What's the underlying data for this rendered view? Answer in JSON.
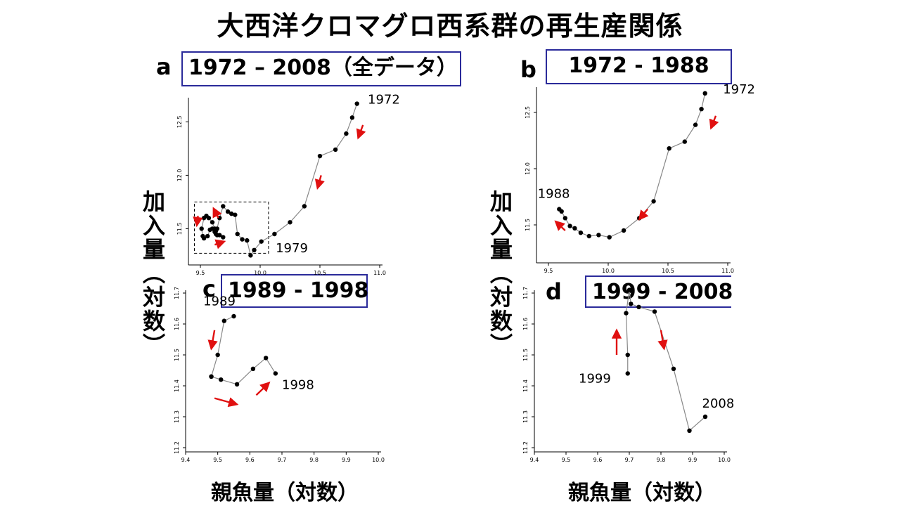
{
  "title": "大西洋クロマグロ西系群の再生産関係",
  "y_axis_label": "加入量（対数）",
  "x_axis_label": "親魚量（対数）",
  "colors": {
    "arrow": "#e01010",
    "line": "#888888",
    "point": "#000000",
    "box_border": "#2a2a9a"
  },
  "chart_data": [
    {
      "id": "a",
      "type": "line",
      "panel_label": "a",
      "range_label": "1972 – 2008（全データ）",
      "xlim": [
        9.4,
        11.0
      ],
      "ylim": [
        11.2,
        12.7
      ],
      "xticks": [
        "9.5",
        "10.0",
        "10.5",
        "11.0"
      ],
      "yticks": [
        "11.5",
        "12.0",
        "12.5"
      ],
      "annotations": [
        {
          "text": "1972",
          "x": 10.9,
          "y": 12.67
        },
        {
          "text": "1979",
          "x": 10.13,
          "y": 11.28
        }
      ],
      "arrows": [
        {
          "x1": 10.86,
          "y1": 12.47,
          "x2": 10.82,
          "y2": 12.35
        },
        {
          "x1": 10.51,
          "y1": 12.0,
          "x2": 10.48,
          "y2": 11.88
        },
        {
          "x1": 9.48,
          "y1": 11.62,
          "x2": 9.47,
          "y2": 11.53
        },
        {
          "x1": 9.65,
          "y1": 11.6,
          "x2": 9.61,
          "y2": 11.69
        },
        {
          "x1": 9.62,
          "y1": 11.35,
          "x2": 9.7,
          "y2": 11.38
        }
      ],
      "dashed_box": [
        9.45,
        10.07,
        11.27,
        11.75
      ],
      "x": [
        10.81,
        10.77,
        10.72,
        10.63,
        10.5,
        10.37,
        10.25,
        10.12,
        10.01,
        9.95,
        9.92,
        9.89,
        9.85,
        9.81,
        9.79,
        9.76,
        9.73,
        9.69,
        9.66,
        9.64,
        9.63,
        9.62,
        9.6,
        9.58,
        9.56,
        9.53,
        9.52,
        9.51,
        9.53,
        9.55,
        9.57,
        9.6,
        9.62,
        9.63,
        9.64,
        9.66,
        9.69
      ],
      "y": [
        12.67,
        12.54,
        12.39,
        12.24,
        12.18,
        11.71,
        11.56,
        11.45,
        11.38,
        11.3,
        11.25,
        11.39,
        11.4,
        11.45,
        11.63,
        11.64,
        11.66,
        11.71,
        11.6,
        11.5,
        11.45,
        11.47,
        11.5,
        11.49,
        11.43,
        11.41,
        11.43,
        11.5,
        11.6,
        11.62,
        11.6,
        11.56,
        11.5,
        11.48,
        11.44,
        11.44,
        11.42
      ]
    },
    {
      "id": "b",
      "type": "line",
      "panel_label": "b",
      "range_label": "1972 - 1988",
      "xlim": [
        9.4,
        11.0
      ],
      "ylim": [
        11.2,
        12.7
      ],
      "xticks": [
        "9.5",
        "10.0",
        "10.5",
        "11.0"
      ],
      "yticks": [
        "11.5",
        "12.0",
        "12.5"
      ],
      "annotations": [
        {
          "text": "1972",
          "x": 10.96,
          "y": 12.67
        },
        {
          "text": "1988",
          "x": 9.41,
          "y": 11.74
        }
      ],
      "arrows": [
        {
          "x1": 10.9,
          "y1": 12.47,
          "x2": 10.86,
          "y2": 12.36
        },
        {
          "x1": 10.33,
          "y1": 11.64,
          "x2": 10.26,
          "y2": 11.55
        },
        {
          "x1": 9.64,
          "y1": 11.45,
          "x2": 9.56,
          "y2": 11.53
        }
      ],
      "x": [
        10.81,
        10.78,
        10.73,
        10.64,
        10.51,
        10.38,
        10.26,
        10.13,
        10.01,
        9.92,
        9.84,
        9.77,
        9.72,
        9.68,
        9.64,
        9.61,
        9.59
      ],
      "y": [
        12.67,
        12.53,
        12.39,
        12.24,
        12.18,
        11.71,
        11.56,
        11.45,
        11.39,
        11.41,
        11.4,
        11.43,
        11.47,
        11.49,
        11.56,
        11.62,
        11.64
      ]
    },
    {
      "id": "c",
      "type": "line",
      "panel_label": "c",
      "range_label": "1989 - 1998",
      "xlim": [
        9.4,
        10.0
      ],
      "ylim": [
        11.2,
        11.7
      ],
      "xticks": [
        "9.4",
        "9.5",
        "9.6",
        "9.7",
        "9.8",
        "9.9",
        "10.0"
      ],
      "yticks": [
        "11.2",
        "11.3",
        "11.4",
        "11.5",
        "11.6",
        "11.7"
      ],
      "annotations": [
        {
          "text": "1989",
          "x": 9.455,
          "y": 11.66
        },
        {
          "text": "1998",
          "x": 9.7,
          "y": 11.39
        }
      ],
      "arrows": [
        {
          "x1": 9.49,
          "y1": 11.58,
          "x2": 9.48,
          "y2": 11.52
        },
        {
          "x1": 9.49,
          "y1": 11.36,
          "x2": 9.56,
          "y2": 11.34
        },
        {
          "x1": 9.62,
          "y1": 11.37,
          "x2": 9.66,
          "y2": 11.41
        }
      ],
      "x": [
        9.55,
        9.52,
        9.5,
        9.48,
        9.48,
        9.51,
        9.56,
        9.61,
        9.65,
        9.68
      ],
      "y": [
        11.625,
        11.61,
        11.5,
        11.43,
        11.43,
        11.42,
        11.405,
        11.455,
        11.49,
        11.44
      ]
    },
    {
      "id": "d",
      "type": "line",
      "panel_label": "d",
      "range_label": "1999 - 2008",
      "xlim": [
        9.4,
        10.0
      ],
      "ylim": [
        11.2,
        11.7
      ],
      "xticks": [
        "9.4",
        "9.5",
        "9.6",
        "9.7",
        "9.8",
        "9.9",
        "10.0"
      ],
      "yticks": [
        "11.2",
        "11.3",
        "11.4",
        "11.5",
        "11.6",
        "11.7"
      ],
      "annotations": [
        {
          "text": "1999",
          "x": 9.54,
          "y": 11.41
        },
        {
          "text": "2008",
          "x": 9.93,
          "y": 11.33
        }
      ],
      "arrows": [
        {
          "x1": 9.66,
          "y1": 11.5,
          "x2": 9.66,
          "y2": 11.58
        },
        {
          "x1": 9.8,
          "y1": 11.58,
          "x2": 9.81,
          "y2": 11.52
        }
      ],
      "x": [
        9.695,
        9.695,
        9.69,
        9.7,
        9.705,
        9.73,
        9.78,
        9.84,
        9.89,
        9.94
      ],
      "y": [
        11.44,
        11.5,
        11.635,
        11.71,
        11.665,
        11.655,
        11.64,
        11.455,
        11.255,
        11.3
      ]
    }
  ]
}
